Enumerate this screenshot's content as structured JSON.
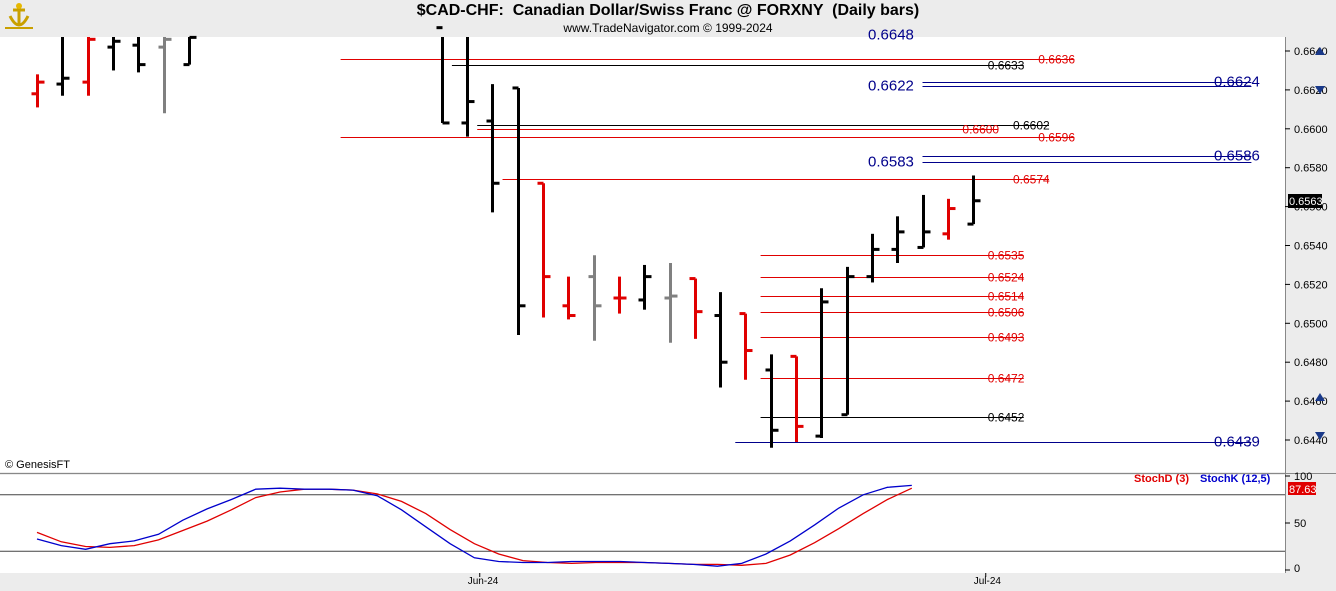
{
  "header": {
    "title": "$CAD-CHF:  Canadian Dollar/Swiss Franc @ FORXNY  (Daily bars)",
    "subtitle": "www.TradeNavigator.com © 1999-2024"
  },
  "watermark": "© GenesisFT",
  "last_price_label": "0.6563",
  "colors": {
    "up_bar": "#000000",
    "down_bar": "#e00000",
    "neutral_bar": "#808080",
    "support_line": "#e00000",
    "resistance_line": "#000000",
    "fib_line": "#00008b",
    "stoch_d": "#e00000",
    "stoch_k": "#0000cc",
    "panel_bg": "#ffffff"
  },
  "chart_data": [
    {
      "type": "ohlc",
      "title": "$CAD-CHF:  Canadian Dollar/Swiss Franc @ FORXNY  (Daily bars)",
      "y_axis": {
        "ticks": [
          0.644,
          0.646,
          0.648,
          0.65,
          0.652,
          0.654,
          0.656,
          0.658,
          0.66,
          0.662,
          0.664
        ],
        "tick_labels": [
          "0.6440",
          "0.6460",
          "0.6480",
          "0.6500",
          "0.6520",
          "0.6540",
          "0.6560",
          "0.6580",
          "0.6600",
          "0.6620",
          "0.6640"
        ],
        "range": [
          0.6435,
          0.665
        ]
      },
      "x_axis": {
        "labels": [
          {
            "text": "Jun-24",
            "bar": 17.5
          },
          {
            "text": "Jul-24",
            "bar": 37.5
          }
        ]
      },
      "bars": [
        {
          "o": 0.6618,
          "h": 0.6628,
          "l": 0.6611,
          "c": 0.6624,
          "color": "red"
        },
        {
          "o": 0.6623,
          "h": 0.6655,
          "l": 0.6617,
          "c": 0.6626,
          "color": "black"
        },
        {
          "o": 0.6624,
          "h": 0.6648,
          "l": 0.6617,
          "c": 0.6646,
          "color": "red"
        },
        {
          "o": 0.6642,
          "h": 0.6655,
          "l": 0.663,
          "c": 0.6645,
          "color": "black"
        },
        {
          "o": 0.6643,
          "h": 0.6648,
          "l": 0.6629,
          "c": 0.6633,
          "color": "black"
        },
        {
          "o": 0.6642,
          "h": 0.6655,
          "l": 0.6608,
          "c": 0.6646,
          "color": "gray"
        },
        {
          "o": 0.6633,
          "h": 0.6655,
          "l": 0.6633,
          "c": 0.6647,
          "color": "black"
        },
        null,
        null,
        null,
        null,
        null,
        null,
        null,
        null,
        null,
        {
          "o": 0.6652,
          "h": 0.6652,
          "l": 0.6603,
          "c": 0.6603,
          "color": "black"
        },
        {
          "o": 0.6603,
          "h": 0.665,
          "l": 0.6596,
          "c": 0.6614,
          "color": "black"
        },
        {
          "o": 0.6604,
          "h": 0.6623,
          "l": 0.6557,
          "c": 0.6572,
          "color": "black"
        },
        {
          "o": 0.6621,
          "h": 0.6621,
          "l": 0.6494,
          "c": 0.6509,
          "color": "black"
        },
        {
          "o": 0.6572,
          "h": 0.6572,
          "l": 0.6503,
          "c": 0.6524,
          "color": "red"
        },
        {
          "o": 0.6509,
          "h": 0.6524,
          "l": 0.6502,
          "c": 0.6504,
          "color": "red"
        },
        {
          "o": 0.6524,
          "h": 0.6535,
          "l": 0.6491,
          "c": 0.6509,
          "color": "gray"
        },
        {
          "o": 0.6513,
          "h": 0.6524,
          "l": 0.6505,
          "c": 0.6513,
          "color": "red"
        },
        {
          "o": 0.6512,
          "h": 0.653,
          "l": 0.6507,
          "c": 0.6524,
          "color": "black"
        },
        {
          "o": 0.6513,
          "h": 0.6531,
          "l": 0.649,
          "c": 0.6514,
          "color": "gray"
        },
        {
          "o": 0.6523,
          "h": 0.6523,
          "l": 0.6492,
          "c": 0.6506,
          "color": "red"
        },
        {
          "o": 0.6504,
          "h": 0.6516,
          "l": 0.6467,
          "c": 0.648,
          "color": "black"
        },
        {
          "o": 0.6505,
          "h": 0.6505,
          "l": 0.6471,
          "c": 0.6486,
          "color": "red"
        },
        {
          "o": 0.6476,
          "h": 0.6484,
          "l": 0.6436,
          "c": 0.6445,
          "color": "black"
        },
        {
          "o": 0.6483,
          "h": 0.6483,
          "l": 0.6439,
          "c": 0.6447,
          "color": "red"
        },
        {
          "o": 0.6442,
          "h": 0.6518,
          "l": 0.6441,
          "c": 0.6511,
          "color": "black"
        },
        {
          "o": 0.6453,
          "h": 0.6529,
          "l": 0.6453,
          "c": 0.6524,
          "color": "black"
        },
        {
          "o": 0.6524,
          "h": 0.6546,
          "l": 0.6521,
          "c": 0.6538,
          "color": "black"
        },
        {
          "o": 0.6538,
          "h": 0.6555,
          "l": 0.6531,
          "c": 0.6547,
          "color": "black"
        },
        {
          "o": 0.6539,
          "h": 0.6566,
          "l": 0.6539,
          "c": 0.6547,
          "color": "black"
        },
        {
          "o": 0.6546,
          "h": 0.6564,
          "l": 0.6543,
          "c": 0.6559,
          "color": "red"
        },
        {
          "o": 0.6551,
          "h": 0.6576,
          "l": 0.6551,
          "c": 0.6563,
          "color": "black"
        }
      ],
      "levels": [
        {
          "value": 0.6636,
          "label": "0.6636",
          "color": "red",
          "x_start_bar": 12,
          "x_end_bar": 41,
          "label_side": "right"
        },
        {
          "value": 0.6633,
          "label": "0.6633",
          "color": "black",
          "x_start_bar": 16.4,
          "x_end_bar": 39,
          "label_side": "right"
        },
        {
          "value": 0.6602,
          "label": "0.6602",
          "color": "black",
          "x_start_bar": 17.4,
          "x_end_bar": 40,
          "label_side": "right"
        },
        {
          "value": 0.66,
          "label": "0.6600",
          "color": "red",
          "x_start_bar": 17.4,
          "x_end_bar": 38,
          "label_side": "right"
        },
        {
          "value": 0.6596,
          "label": "0.6596",
          "color": "red",
          "x_start_bar": 12,
          "x_end_bar": 41,
          "label_side": "right"
        },
        {
          "value": 0.6574,
          "label": "0.6574",
          "color": "red",
          "x_start_bar": 18.4,
          "x_end_bar": 40,
          "label_side": "right"
        },
        {
          "value": 0.6535,
          "label": "0.6535",
          "color": "red",
          "x_start_bar": 28.6,
          "x_end_bar": 39,
          "label_side": "right"
        },
        {
          "value": 0.6524,
          "label": "0.6524",
          "color": "red",
          "x_start_bar": 28.6,
          "x_end_bar": 39,
          "label_side": "right"
        },
        {
          "value": 0.6514,
          "label": "0.6514",
          "color": "red",
          "x_start_bar": 28.6,
          "x_end_bar": 39,
          "label_side": "right"
        },
        {
          "value": 0.6506,
          "label": "0.6506",
          "color": "red",
          "x_start_bar": 28.6,
          "x_end_bar": 39,
          "label_side": "right"
        },
        {
          "value": 0.6493,
          "label": "0.6493",
          "color": "red",
          "x_start_bar": 28.6,
          "x_end_bar": 39,
          "label_side": "right"
        },
        {
          "value": 0.6472,
          "label": "0.6472",
          "color": "red",
          "x_start_bar": 28.6,
          "x_end_bar": 39,
          "label_side": "right"
        },
        {
          "value": 0.6452,
          "label": "0.6452",
          "color": "black",
          "x_start_bar": 28.6,
          "x_end_bar": 39,
          "label_side": "right"
        },
        {
          "value": 0.6439,
          "label": "0.6439",
          "color": "blue",
          "x_start_bar": 27.6,
          "x_end_bar": 48,
          "label_side": "right"
        },
        {
          "value": 0.6624,
          "label": "0.6624",
          "color": "blue",
          "x_start_bar": 35,
          "x_end_bar": 48,
          "label_side": "right"
        },
        {
          "value": 0.6622,
          "label": "0.6622",
          "color": "blue",
          "x_start_bar": 35,
          "x_end_bar": 48,
          "label_side": "left"
        },
        {
          "value": 0.6586,
          "label": "0.6586",
          "color": "blue",
          "x_start_bar": 35,
          "x_end_bar": 48,
          "label_side": "right"
        },
        {
          "value": 0.6583,
          "label": "0.6583",
          "color": "blue",
          "x_start_bar": 35,
          "x_end_bar": 48,
          "label_side": "left"
        },
        {
          "value": 0.6648,
          "label": "0.6648",
          "color": "blue",
          "x_start_bar": 35,
          "x_end_bar": 48,
          "label_side": "left"
        }
      ]
    },
    {
      "type": "line",
      "title": "",
      "y_axis": {
        "ticks": [
          0,
          50,
          100
        ],
        "tick_labels": [
          "0",
          "50",
          "100"
        ],
        "range": [
          0,
          100
        ],
        "ref_lines": [
          20,
          80
        ]
      },
      "last_value_label": "87.63",
      "series": [
        {
          "name": "StochD (3)",
          "color": "red",
          "values": [
            {
              "bar": 0,
              "v": 40
            },
            {
              "bar": 1,
              "v": 30
            },
            {
              "bar": 2,
              "v": 25
            },
            {
              "bar": 3,
              "v": 24
            },
            {
              "bar": 4,
              "v": 26
            },
            {
              "bar": 5,
              "v": 32
            },
            {
              "bar": 6,
              "v": 42
            },
            {
              "bar": 7,
              "v": 52
            },
            {
              "bar": 8,
              "v": 64
            },
            {
              "bar": 9,
              "v": 77
            },
            {
              "bar": 10,
              "v": 83
            },
            {
              "bar": 11,
              "v": 86
            },
            {
              "bar": 12,
              "v": 86
            },
            {
              "bar": 13,
              "v": 85
            },
            {
              "bar": 14,
              "v": 81
            },
            {
              "bar": 15,
              "v": 73
            },
            {
              "bar": 16,
              "v": 60
            },
            {
              "bar": 17,
              "v": 43
            },
            {
              "bar": 18,
              "v": 28
            },
            {
              "bar": 19,
              "v": 17
            },
            {
              "bar": 20,
              "v": 10
            },
            {
              "bar": 21,
              "v": 8
            },
            {
              "bar": 22,
              "v": 7
            },
            {
              "bar": 23,
              "v": 8
            },
            {
              "bar": 24,
              "v": 8
            },
            {
              "bar": 25,
              "v": 8
            },
            {
              "bar": 26,
              "v": 7
            },
            {
              "bar": 27,
              "v": 6
            },
            {
              "bar": 28,
              "v": 6
            },
            {
              "bar": 29,
              "v": 5
            },
            {
              "bar": 30,
              "v": 7
            },
            {
              "bar": 31,
              "v": 16
            },
            {
              "bar": 32,
              "v": 29
            },
            {
              "bar": 33,
              "v": 44
            },
            {
              "bar": 34,
              "v": 60
            },
            {
              "bar": 35,
              "v": 75
            },
            {
              "bar": 36,
              "v": 87
            }
          ]
        },
        {
          "name": "StochK (12,5)",
          "color": "blue",
          "values": [
            {
              "bar": 0,
              "v": 33
            },
            {
              "bar": 1,
              "v": 26
            },
            {
              "bar": 2,
              "v": 22
            },
            {
              "bar": 3,
              "v": 28
            },
            {
              "bar": 4,
              "v": 31
            },
            {
              "bar": 5,
              "v": 38
            },
            {
              "bar": 6,
              "v": 53
            },
            {
              "bar": 7,
              "v": 65
            },
            {
              "bar": 8,
              "v": 75
            },
            {
              "bar": 9,
              "v": 86
            },
            {
              "bar": 10,
              "v": 87
            },
            {
              "bar": 11,
              "v": 86
            },
            {
              "bar": 12,
              "v": 86
            },
            {
              "bar": 13,
              "v": 85
            },
            {
              "bar": 14,
              "v": 79
            },
            {
              "bar": 15,
              "v": 64
            },
            {
              "bar": 16,
              "v": 46
            },
            {
              "bar": 17,
              "v": 28
            },
            {
              "bar": 18,
              "v": 13
            },
            {
              "bar": 19,
              "v": 9
            },
            {
              "bar": 20,
              "v": 8
            },
            {
              "bar": 21,
              "v": 8
            },
            {
              "bar": 22,
              "v": 9
            },
            {
              "bar": 23,
              "v": 9
            },
            {
              "bar": 24,
              "v": 9
            },
            {
              "bar": 25,
              "v": 8
            },
            {
              "bar": 26,
              "v": 7
            },
            {
              "bar": 27,
              "v": 6
            },
            {
              "bar": 28,
              "v": 4
            },
            {
              "bar": 29,
              "v": 7
            },
            {
              "bar": 30,
              "v": 17
            },
            {
              "bar": 31,
              "v": 31
            },
            {
              "bar": 32,
              "v": 48
            },
            {
              "bar": 33,
              "v": 66
            },
            {
              "bar": 34,
              "v": 80
            },
            {
              "bar": 35,
              "v": 88
            },
            {
              "bar": 36,
              "v": 90
            }
          ]
        }
      ]
    }
  ]
}
